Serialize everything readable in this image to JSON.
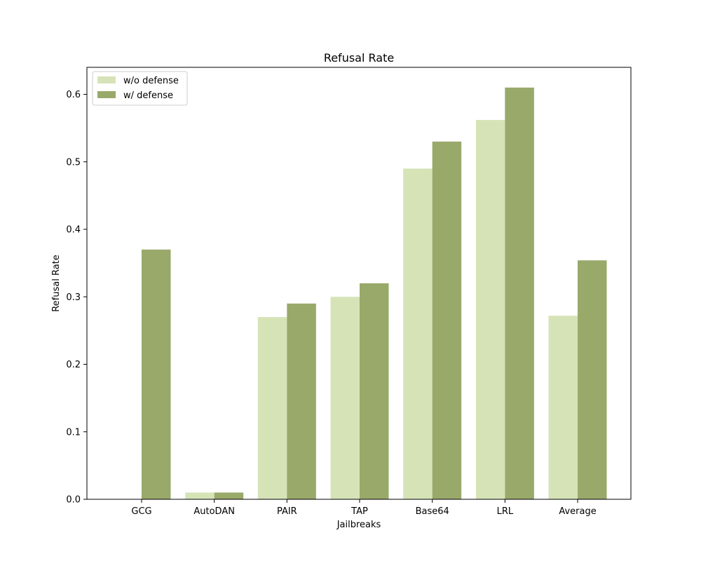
{
  "chart_data": {
    "type": "bar",
    "title": "Refusal Rate",
    "xlabel": "Jailbreaks",
    "ylabel": "Refusal Rate",
    "categories": [
      "GCG",
      "AutoDAN",
      "PAIR",
      "TAP",
      "Base64",
      "LRL",
      "Average"
    ],
    "series": [
      {
        "name": "w/o defense",
        "color": "#d6e3b7",
        "values": [
          0.0,
          0.01,
          0.27,
          0.3,
          0.49,
          0.562,
          0.272
        ]
      },
      {
        "name": "w/ defense",
        "color": "#98a96a",
        "values": [
          0.37,
          0.01,
          0.29,
          0.32,
          0.53,
          0.61,
          0.354
        ]
      }
    ],
    "ylim": [
      0,
      0.64
    ],
    "yticks": [
      "0.0",
      "0.1",
      "0.2",
      "0.3",
      "0.4",
      "0.5",
      "0.6"
    ],
    "grid": false,
    "legend_position": "upper-left"
  }
}
